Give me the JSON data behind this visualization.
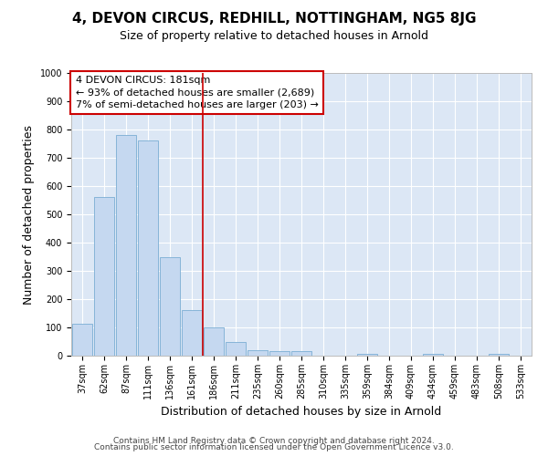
{
  "title": "4, DEVON CIRCUS, REDHILL, NOTTINGHAM, NG5 8JG",
  "subtitle": "Size of property relative to detached houses in Arnold",
  "xlabel": "Distribution of detached houses by size in Arnold",
  "ylabel": "Number of detached properties",
  "categories": [
    "37sqm",
    "62sqm",
    "87sqm",
    "111sqm",
    "136sqm",
    "161sqm",
    "186sqm",
    "211sqm",
    "235sqm",
    "260sqm",
    "285sqm",
    "310sqm",
    "335sqm",
    "359sqm",
    "384sqm",
    "409sqm",
    "434sqm",
    "459sqm",
    "483sqm",
    "508sqm",
    "533sqm"
  ],
  "values": [
    112,
    560,
    780,
    760,
    350,
    160,
    100,
    50,
    20,
    15,
    15,
    0,
    0,
    8,
    0,
    0,
    8,
    0,
    0,
    8,
    0
  ],
  "bar_color": "#c5d8f0",
  "bar_edge_color": "#7aadd4",
  "vline_color": "#cc0000",
  "vline_pos": 5.5,
  "annotation_text": "4 DEVON CIRCUS: 181sqm\n← 93% of detached houses are smaller (2,689)\n7% of semi-detached houses are larger (203) →",
  "annotation_box_facecolor": "#ffffff",
  "annotation_box_edgecolor": "#cc0000",
  "ylim": [
    0,
    1000
  ],
  "yticks": [
    0,
    100,
    200,
    300,
    400,
    500,
    600,
    700,
    800,
    900,
    1000
  ],
  "footer_line1": "Contains HM Land Registry data © Crown copyright and database right 2024.",
  "footer_line2": "Contains public sector information licensed under the Open Government Licence v3.0.",
  "bg_color": "#dce7f5",
  "fig_bg_color": "#ffffff",
  "title_fontsize": 11,
  "subtitle_fontsize": 9,
  "axis_label_fontsize": 9,
  "tick_fontsize": 7,
  "annotation_fontsize": 8,
  "footer_fontsize": 6.5
}
